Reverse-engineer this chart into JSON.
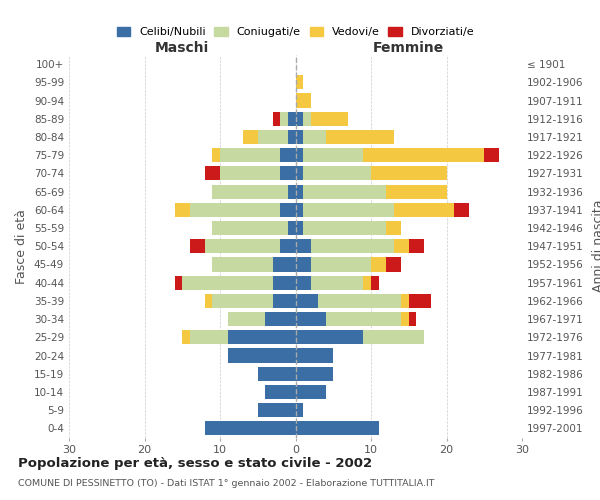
{
  "age_groups": [
    "0-4",
    "5-9",
    "10-14",
    "15-19",
    "20-24",
    "25-29",
    "30-34",
    "35-39",
    "40-44",
    "45-49",
    "50-54",
    "55-59",
    "60-64",
    "65-69",
    "70-74",
    "75-79",
    "80-84",
    "85-89",
    "90-94",
    "95-99",
    "100+"
  ],
  "birth_years": [
    "1997-2001",
    "1992-1996",
    "1987-1991",
    "1982-1986",
    "1977-1981",
    "1972-1976",
    "1967-1971",
    "1962-1966",
    "1957-1961",
    "1952-1956",
    "1947-1951",
    "1942-1946",
    "1937-1941",
    "1932-1936",
    "1927-1931",
    "1922-1926",
    "1917-1921",
    "1912-1916",
    "1907-1911",
    "1902-1906",
    "≤ 1901"
  ],
  "colors": {
    "celibi": "#3a6ea5",
    "coniugati": "#c5d9a0",
    "vedovi": "#f5c842",
    "divorziati": "#cc1a1a"
  },
  "males": {
    "celibi": [
      12,
      5,
      4,
      5,
      9,
      9,
      4,
      3,
      3,
      3,
      2,
      1,
      2,
      1,
      2,
      2,
      1,
      1,
      0,
      0,
      0
    ],
    "coniugati": [
      0,
      0,
      0,
      0,
      0,
      5,
      5,
      8,
      12,
      8,
      10,
      10,
      12,
      10,
      8,
      8,
      4,
      1,
      0,
      0,
      0
    ],
    "vedovi": [
      0,
      0,
      0,
      0,
      0,
      1,
      0,
      1,
      0,
      0,
      0,
      0,
      2,
      0,
      0,
      1,
      2,
      0,
      0,
      0,
      0
    ],
    "divorziati": [
      0,
      0,
      0,
      0,
      0,
      0,
      0,
      0,
      1,
      0,
      2,
      0,
      0,
      0,
      2,
      0,
      0,
      1,
      0,
      0,
      0
    ]
  },
  "females": {
    "celibi": [
      11,
      1,
      4,
      5,
      5,
      9,
      4,
      3,
      2,
      2,
      2,
      1,
      1,
      1,
      1,
      1,
      1,
      1,
      0,
      0,
      0
    ],
    "coniugati": [
      0,
      0,
      0,
      0,
      0,
      8,
      10,
      11,
      7,
      8,
      11,
      11,
      12,
      11,
      9,
      8,
      3,
      1,
      0,
      0,
      0
    ],
    "vedovi": [
      0,
      0,
      0,
      0,
      0,
      0,
      1,
      1,
      1,
      2,
      2,
      2,
      8,
      8,
      10,
      16,
      9,
      5,
      2,
      1,
      0
    ],
    "divorziati": [
      0,
      0,
      0,
      0,
      0,
      0,
      1,
      3,
      1,
      2,
      2,
      0,
      2,
      0,
      0,
      2,
      0,
      0,
      0,
      0,
      0
    ]
  },
  "xlim": 30,
  "title": "Popolazione per età, sesso e stato civile - 2002",
  "subtitle": "COMUNE DI PESSINETTO (TO) - Dati ISTAT 1° gennaio 2002 - Elaborazione TUTTITALIA.IT",
  "ylabel_left": "Fasce di età",
  "ylabel_right": "Anni di nascita",
  "xlabel_left": "Maschi",
  "xlabel_right": "Femmine",
  "legend_labels": [
    "Celibi/Nubili",
    "Coniugati/e",
    "Vedovi/e",
    "Divorziati/e"
  ],
  "background_color": "#ffffff",
  "grid_color": "#cccccc"
}
